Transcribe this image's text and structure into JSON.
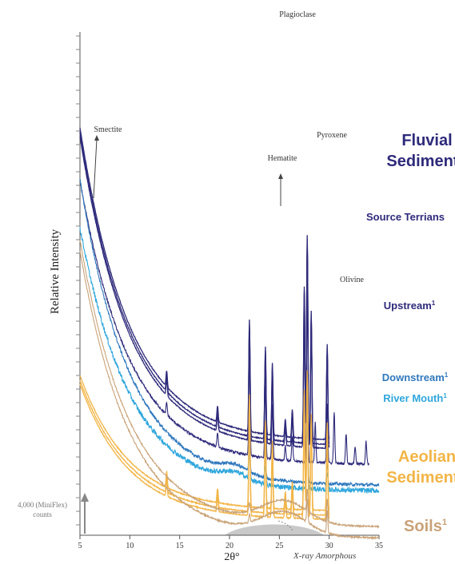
{
  "chart_data": {
    "type": "line",
    "title": "",
    "xlabel": "2θ°",
    "ylabel": "Relative Intensity",
    "xlim": [
      5,
      35
    ],
    "x_ticks": [
      5,
      10,
      15,
      20,
      25,
      30,
      35
    ],
    "y_scale_bar": {
      "value_counts": 4000,
      "label_line1": "4,000 (MiniFlex)",
      "label_line2": "counts"
    },
    "amorphous_hump": {
      "label": "X-ray Amorphous",
      "x_range": [
        19.5,
        29.5
      ]
    },
    "peak_labels": [
      {
        "text": "Plagioclase",
        "x": 27.8
      },
      {
        "text": "Pyroxene",
        "x": 29.8
      },
      {
        "text": "Hematite",
        "x": 24.2
      },
      {
        "text": "Smectite",
        "x": 6.0
      },
      {
        "text": "Olivine",
        "x": 32.6
      }
    ],
    "group_labels": [
      {
        "text": "Fluvial",
        "color": "#2e2a7a"
      },
      {
        "text": "Sediments",
        "color": "#2e2a7a"
      },
      {
        "text": "Aeolian",
        "color": "#f2b547"
      },
      {
        "text": "Sediments",
        "color": "#f2b547"
      }
    ],
    "series_labels": {
      "source": {
        "text": "Source Terrians",
        "sup": "",
        "color": "#2e2a7a"
      },
      "upstream": {
        "text": "Upstream",
        "sup": "1",
        "color": "#2e2a7a"
      },
      "downstream": {
        "text": "Downstream",
        "sup": "1",
        "color": "#2f78bd"
      },
      "rivermouth": {
        "text": "River Mouth",
        "sup": "1",
        "color": "#2fa6dc"
      },
      "soils": {
        "text": "Soils",
        "sup": "1",
        "color": "#c9a277"
      }
    },
    "series_colors": {
      "source": "#2e2a7a",
      "upstream": "#2e2a7a",
      "downstream": "#2f78bd",
      "rivermouth": "#2fa6dc",
      "aeolian": "#f2b547",
      "soils": "#c9a277"
    },
    "series": [
      {
        "key": "source",
        "x_end": 30.0,
        "base_start": 510,
        "base_end": 117,
        "peaks": [
          [
            13.7,
            20
          ],
          [
            18.8,
            20
          ],
          [
            22.0,
            140
          ],
          [
            23.6,
            110
          ],
          [
            24.3,
            90
          ],
          [
            25.6,
            22
          ],
          [
            26.3,
            35
          ],
          [
            27.5,
            190
          ],
          [
            27.8,
            255
          ],
          [
            28.2,
            160
          ],
          [
            29.8,
            120
          ]
        ]
      },
      {
        "key": "upstream",
        "x_end": 34.0,
        "base_start": 445,
        "base_end": 88,
        "peaks": [
          [
            13.7,
            15
          ],
          [
            18.8,
            18
          ],
          [
            22.0,
            130
          ],
          [
            23.6,
            90
          ],
          [
            24.3,
            70
          ],
          [
            25.6,
            18
          ],
          [
            26.3,
            30
          ],
          [
            27.8,
            205
          ],
          [
            28.6,
            50
          ],
          [
            29.8,
            75
          ],
          [
            30.5,
            65
          ],
          [
            31.7,
            38
          ],
          [
            32.6,
            22
          ],
          [
            33.7,
            28
          ]
        ]
      },
      {
        "key": "downstream",
        "x_end": 35.0,
        "base_start": 445,
        "base_end": 62,
        "peaks": [
          [
            22.0,
            40
          ],
          [
            23.6,
            25
          ],
          [
            27.8,
            95
          ],
          [
            29.8,
            25
          ]
        ]
      },
      {
        "key": "rivermouth",
        "x_end": 35.0,
        "base_start": 385,
        "base_end": 55,
        "peaks": [
          [
            22.0,
            35
          ],
          [
            23.6,
            25
          ],
          [
            27.8,
            85
          ],
          [
            29.8,
            20
          ]
        ]
      },
      {
        "key": "aeolian",
        "x_end": 30.0,
        "base_start": 200,
        "base_end": 30,
        "peaks": [
          [
            13.7,
            20
          ],
          [
            18.8,
            18
          ],
          [
            22.0,
            140
          ],
          [
            23.6,
            110
          ],
          [
            24.3,
            85
          ],
          [
            25.6,
            22
          ],
          [
            26.3,
            35
          ],
          [
            27.5,
            150
          ],
          [
            27.8,
            175
          ],
          [
            28.2,
            120
          ],
          [
            29.8,
            110
          ]
        ]
      },
      {
        "key": "soils",
        "x_end": 35.0,
        "base_start": 370,
        "base_end": 10,
        "peaks": [
          [
            22.0,
            10
          ],
          [
            27.8,
            28
          ],
          [
            29.8,
            28
          ]
        ]
      }
    ]
  }
}
